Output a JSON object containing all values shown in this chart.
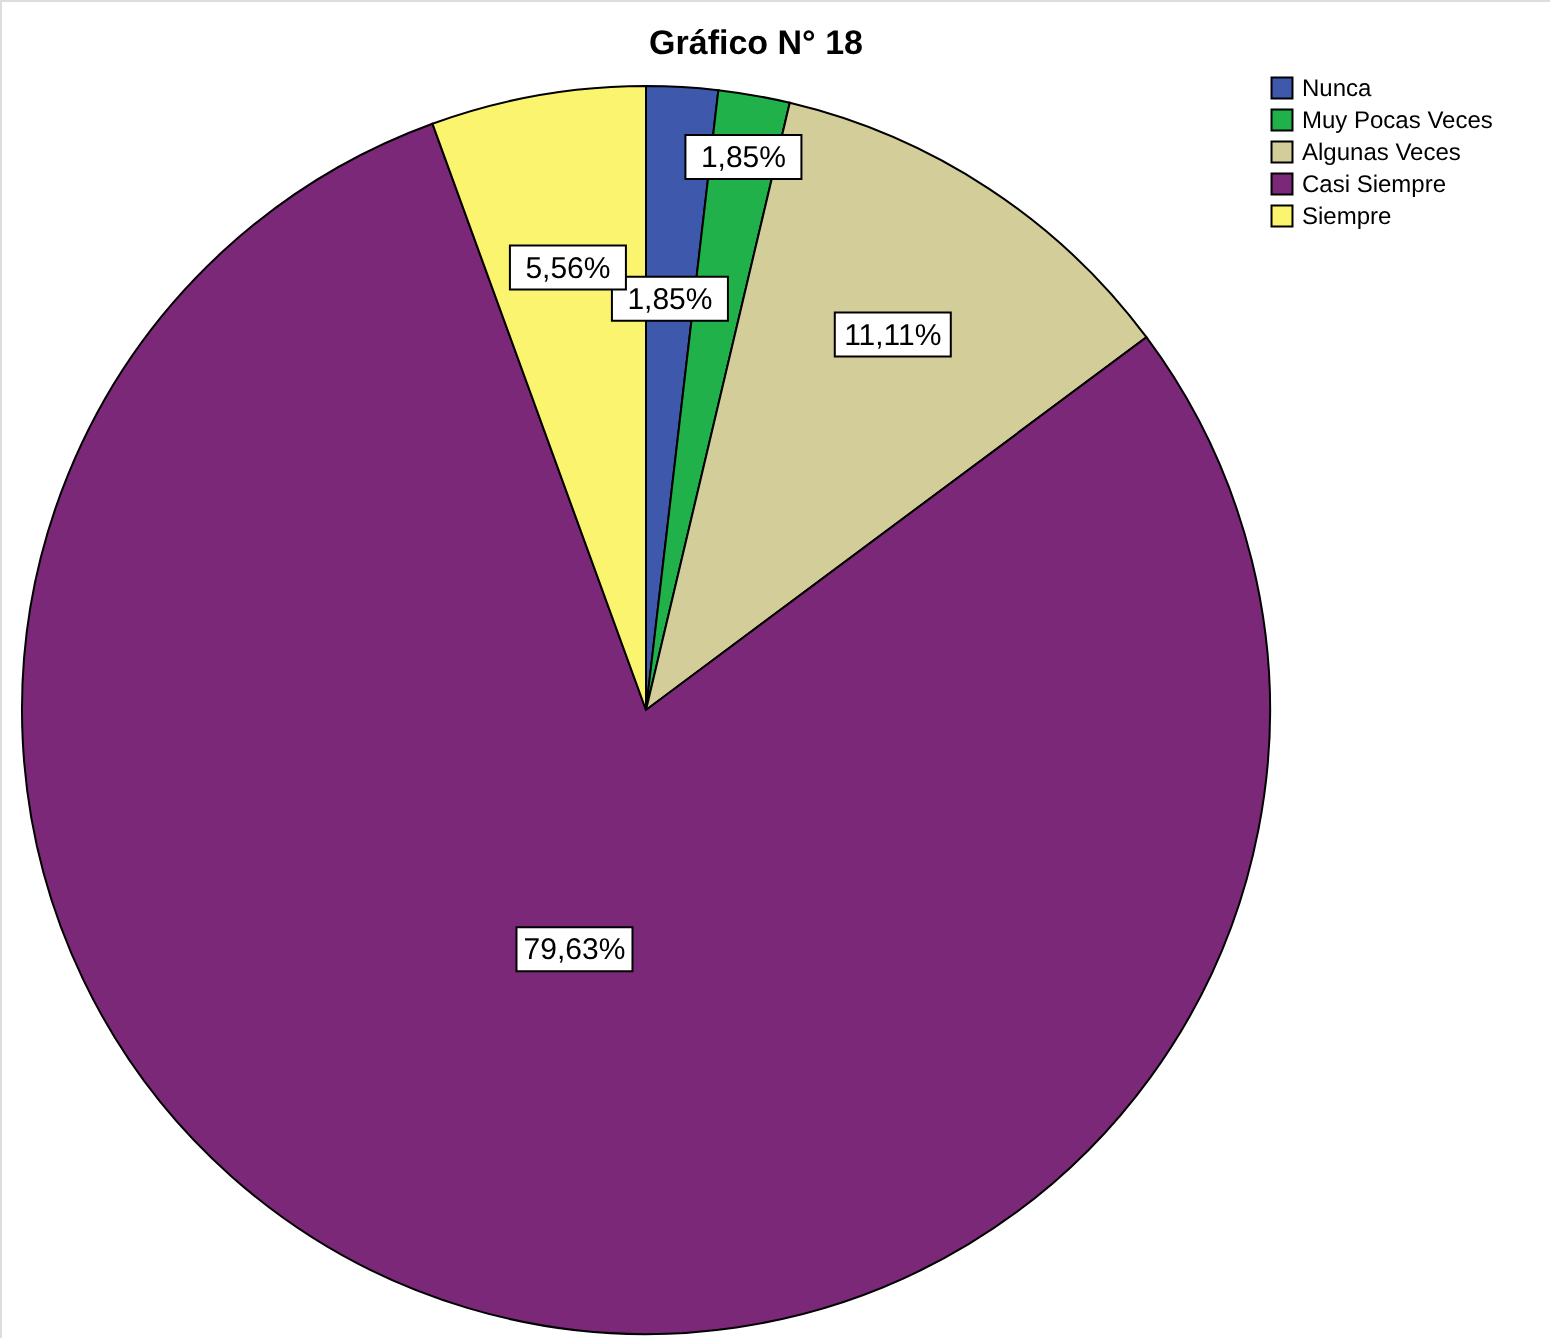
{
  "chart_data": {
    "type": "pie",
    "title": "Gráfico N° 18",
    "categories": [
      "Nunca",
      "Muy Pocas Veces",
      "Algunas Veces",
      "Casi Siempre",
      "Siempre"
    ],
    "values": [
      1.85,
      1.85,
      11.11,
      79.63,
      5.56
    ],
    "colors": [
      "#3e58ac",
      "#21b14a",
      "#d3ce99",
      "#7b2878",
      "#fbf46e"
    ],
    "value_labels": [
      "1,85%",
      "1,85%",
      "11,11%",
      "79,63%",
      "5,56%"
    ],
    "legend": "top right"
  }
}
